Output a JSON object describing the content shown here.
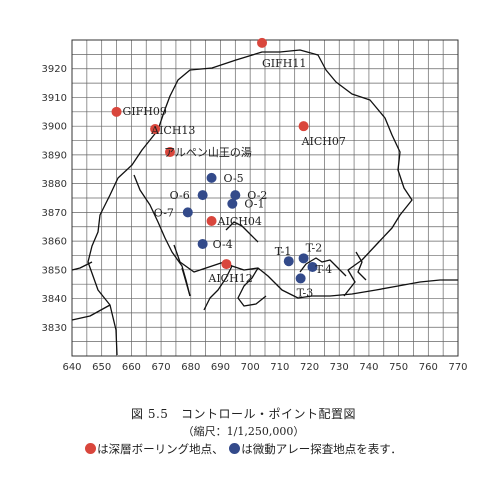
{
  "chart_data": {
    "type": "scatter",
    "xlim": [
      640,
      770
    ],
    "ylim": [
      3820,
      3930
    ],
    "xticks": [
      640,
      650,
      660,
      670,
      680,
      690,
      700,
      710,
      720,
      730,
      740,
      750,
      760,
      770
    ],
    "yticks": [
      3830,
      3840,
      3850,
      3860,
      3870,
      3880,
      3890,
      3900,
      3910,
      3920
    ],
    "grid": true,
    "series": [
      {
        "name": "深層ボーリング地点",
        "color": "#d9463c",
        "points": [
          {
            "label": "GIFH11",
            "x": 704,
            "y": 3929
          },
          {
            "label": "GIFH09",
            "x": 655,
            "y": 3905
          },
          {
            "label": "AICH13",
            "x": 668,
            "y": 3899
          },
          {
            "label": "AICH07",
            "x": 718,
            "y": 3900
          },
          {
            "label": "アルペン山王の湯",
            "x": 673,
            "y": 3891
          },
          {
            "label": "AICH04",
            "x": 687,
            "y": 3867
          },
          {
            "label": "AICH12",
            "x": 692,
            "y": 3852
          }
        ]
      },
      {
        "name": "微動アレー探査地点",
        "color": "#334a8a",
        "points": [
          {
            "label": "O-5",
            "x": 687,
            "y": 3882
          },
          {
            "label": "O-6",
            "x": 684,
            "y": 3876
          },
          {
            "label": "O-2",
            "x": 695,
            "y": 3876
          },
          {
            "label": "O-1",
            "x": 694,
            "y": 3873
          },
          {
            "label": "O-7",
            "x": 679,
            "y": 3870
          },
          {
            "label": "O-4",
            "x": 684,
            "y": 3859
          },
          {
            "label": "T-1",
            "x": 713,
            "y": 3853
          },
          {
            "label": "T-2",
            "x": 718,
            "y": 3854
          },
          {
            "label": "T-4",
            "x": 721,
            "y": 3851
          },
          {
            "label": "T-3",
            "x": 717,
            "y": 3847
          }
        ]
      }
    ]
  },
  "caption": {
    "title": "図 5.5　コントロール・ポイント配置図",
    "scale": "（縮尺：1/1,250,000）",
    "legend_red": "は深層ボーリング地点、",
    "legend_blue": "は微動アレー探査地点を表す．"
  }
}
